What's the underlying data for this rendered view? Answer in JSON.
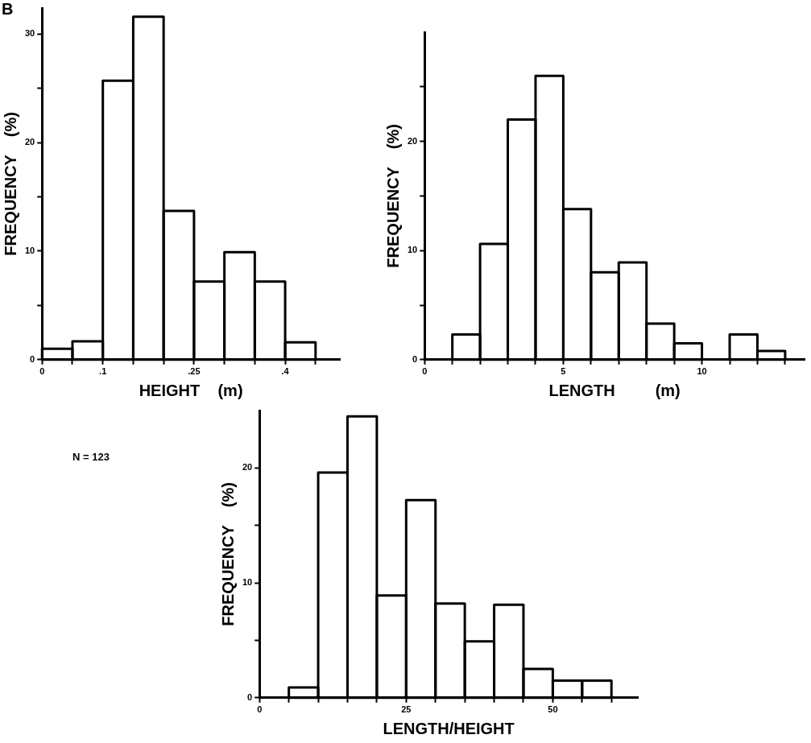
{
  "chart_data": [
    {
      "type": "histogram",
      "xlabel": "HEIGHT    (m)",
      "ylabel": "FREQUENCY    (%)",
      "color": "#000000",
      "bins": [
        0,
        0.05,
        0.1,
        0.15,
        0.2,
        0.25,
        0.3,
        0.35,
        0.4,
        0.45
      ],
      "values": [
        1,
        1.7,
        25.7,
        31.6,
        13.7,
        7.2,
        9.9,
        7.2,
        1.6
      ],
      "xlim": [
        0,
        0.49
      ],
      "ylim": [
        0,
        32.4
      ],
      "xticks": [
        {
          "value": 0,
          "label": "0"
        },
        {
          "value": 0.05,
          "label": null
        },
        {
          "value": 0.1,
          "label": ".1"
        },
        {
          "value": 0.15,
          "label": null
        },
        {
          "value": 0.2,
          "label": null
        },
        {
          "value": 0.25,
          "label": ".25"
        },
        {
          "value": 0.3,
          "label": null
        },
        {
          "value": 0.35,
          "label": null
        },
        {
          "value": 0.4,
          "label": ".4"
        },
        {
          "value": 0.45,
          "label": null
        }
      ],
      "yticks": [
        0,
        {
          "value": 5,
          "label": null
        },
        10,
        {
          "value": 15,
          "label": null
        },
        20,
        {
          "value": 25,
          "label": null
        },
        30
      ],
      "grid": false,
      "legend": false,
      "annotations": [
        "B"
      ]
    },
    {
      "type": "histogram",
      "xlabel": "LENGTH         (m)",
      "ylabel": "FREQUENCY    (%)",
      "color": "#000000",
      "bins": [
        1,
        2,
        3,
        4,
        5,
        6,
        7,
        8,
        9,
        10,
        11,
        12,
        13
      ],
      "values": [
        2.3,
        10.6,
        22,
        26,
        13.8,
        8,
        8.9,
        3.3,
        1.5,
        0,
        2.3,
        0.8
      ],
      "xlim": [
        0,
        13.7
      ],
      "ylim": [
        0,
        30
      ],
      "xticks": [
        0,
        {
          "value": 1,
          "label": null
        },
        {
          "value": 2,
          "label": null
        },
        {
          "value": 3,
          "label": null
        },
        {
          "value": 4,
          "label": null
        },
        5,
        {
          "value": 6,
          "label": null
        },
        {
          "value": 7,
          "label": null
        },
        {
          "value": 8,
          "label": null
        },
        {
          "value": 9,
          "label": null
        },
        10,
        {
          "value": 11,
          "label": null
        },
        {
          "value": 12,
          "label": null
        },
        {
          "value": 13,
          "label": null
        }
      ],
      "yticks": [
        0,
        {
          "value": 5,
          "label": null
        },
        10,
        {
          "value": 15,
          "label": null
        },
        20,
        {
          "value": 25,
          "label": null
        }
      ],
      "grid": false,
      "legend": false
    },
    {
      "type": "histogram",
      "xlabel": "LENGTH/HEIGHT",
      "ylabel": "FREQUENCY    (%)",
      "color": "#000000",
      "bins": [
        5,
        10,
        15,
        20,
        25,
        30,
        35,
        40,
        45,
        50,
        55,
        60
      ],
      "values": [
        0.9,
        19.6,
        24.5,
        8.9,
        17.2,
        8.2,
        4.9,
        8.1,
        2.5,
        1.5,
        1.5
      ],
      "xlim": [
        0,
        64.5
      ],
      "ylim": [
        0,
        25
      ],
      "xticks": [
        0,
        {
          "value": 5,
          "label": null
        },
        {
          "value": 10,
          "label": null
        },
        {
          "value": 15,
          "label": null
        },
        {
          "value": 20,
          "label": null
        },
        25,
        {
          "value": 30,
          "label": null
        },
        {
          "value": 35,
          "label": null
        },
        {
          "value": 40,
          "label": null
        },
        {
          "value": 45,
          "label": null
        },
        50,
        {
          "value": 55,
          "label": null
        },
        {
          "value": 60,
          "label": null
        }
      ],
      "yticks": [
        0,
        {
          "value": 5,
          "label": null
        },
        10,
        {
          "value": 15,
          "label": null
        },
        20
      ],
      "grid": false,
      "legend": false,
      "annotations": [
        "N = 123"
      ]
    }
  ]
}
